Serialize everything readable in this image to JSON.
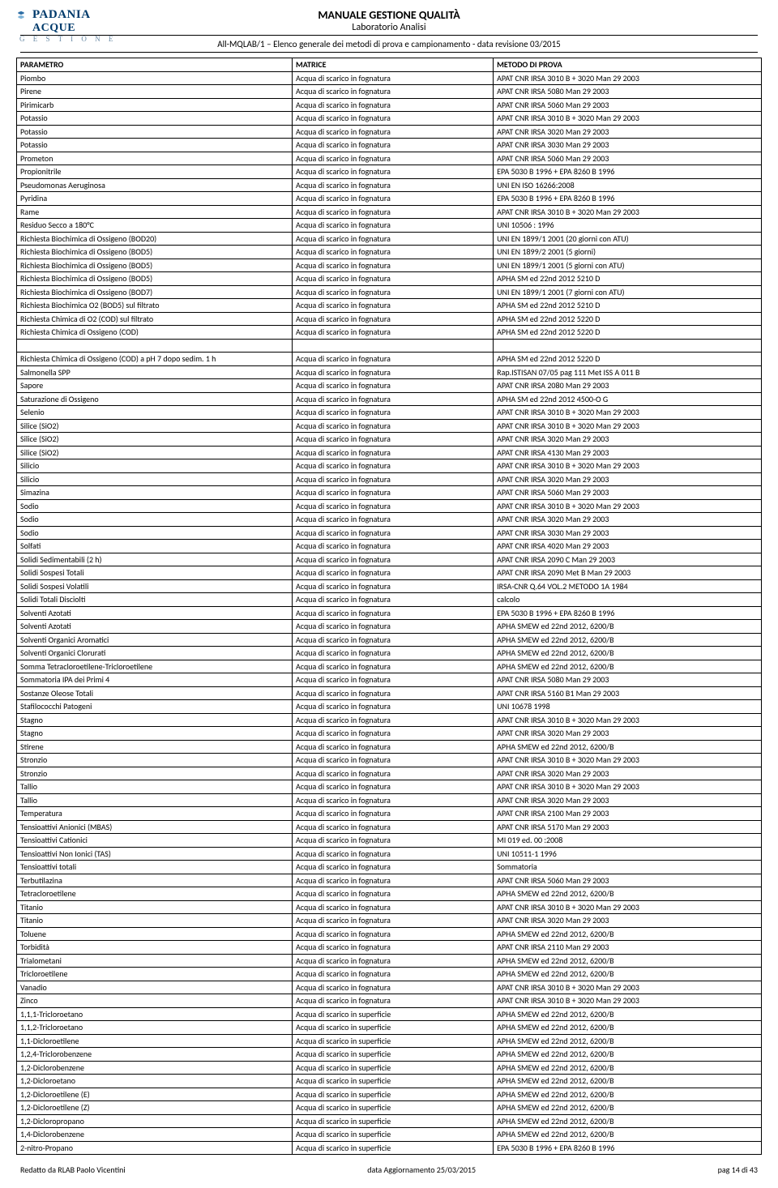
{
  "header": {
    "logo_top": "PADANIA",
    "logo_mid": "ACQUE",
    "logo_sub": "G E S T I O N E",
    "title1": "MANUALE GESTIONE QUALITÀ",
    "title2": "Laboratorio Analisi",
    "subtitle": "All-MQLAB/1 – Elenco generale dei metodi di prova e campionamento  - data revisione 03/2015"
  },
  "columns": [
    "PARAMETRO",
    "MATRICE",
    "METODO DI PROVA"
  ],
  "col_widths": [
    "37%",
    "27%",
    "36%"
  ],
  "rows": [
    [
      "Piombo",
      "Acqua di scarico in fognatura",
      "APAT CNR IRSA 3010 B + 3020 Man 29 2003"
    ],
    [
      "Pirene",
      "Acqua di scarico in fognatura",
      "APAT CNR IRSA 5080 Man 29 2003"
    ],
    [
      "Pirimicarb",
      "Acqua di scarico in fognatura",
      "APAT CNR IRSA 5060 Man 29 2003"
    ],
    [
      "Potassio",
      "Acqua di scarico in fognatura",
      "APAT CNR IRSA 3010 B + 3020 Man 29 2003"
    ],
    [
      "Potassio",
      "Acqua di scarico in fognatura",
      "APAT CNR IRSA 3020 Man 29 2003"
    ],
    [
      "Potassio",
      "Acqua di scarico in fognatura",
      "APAT CNR IRSA 3030 Man 29 2003"
    ],
    [
      "Prometon",
      "Acqua di scarico in fognatura",
      "APAT CNR IRSA 5060 Man 29 2003"
    ],
    [
      "Propionitrile",
      "Acqua di scarico in fognatura",
      "EPA 5030 B 1996 + EPA 8260 B 1996"
    ],
    [
      "Pseudomonas Aeruginosa",
      "Acqua di scarico in fognatura",
      "UNI EN ISO 16266:2008"
    ],
    [
      "Pyridina",
      "Acqua di scarico in fognatura",
      "EPA 5030 B 1996 + EPA 8260 B 1996"
    ],
    [
      "Rame",
      "Acqua di scarico in fognatura",
      "APAT CNR IRSA 3010 B + 3020 Man 29 2003"
    ],
    [
      "Residuo Secco a 180°C",
      "Acqua di scarico in fognatura",
      "UNI 10506 : 1996"
    ],
    [
      "Richiesta Biochimica di Ossigeno (BOD20)",
      "Acqua di scarico in fognatura",
      "UNI EN 1899/1 2001 (20 giorni con ATU)"
    ],
    [
      "Richiesta Biochimica di Ossigeno (BOD5)",
      "Acqua di scarico in fognatura",
      "UNI EN 1899/2 2001 (5 giorni)"
    ],
    [
      "Richiesta Biochimica di Ossigeno (BOD5)",
      "Acqua di scarico in fognatura",
      "UNI EN 1899/1 2001 (5 giorni con ATU)"
    ],
    [
      "Richiesta Biochimica di Ossigeno (BOD5)",
      "Acqua di scarico in fognatura",
      "APHA SM ed 22nd 2012 5210 D"
    ],
    [
      "Richiesta Biochimica di Ossigeno (BOD7)",
      "Acqua di scarico in fognatura",
      "UNI EN 1899/1 2001 (7 giorni con ATU)"
    ],
    [
      "Richiesta Biochimica O2 (BOD5) sul filtrato",
      "Acqua di scarico in fognatura",
      "APHA SM ed 22nd 2012 5210 D"
    ],
    [
      "Richiesta Chimica di O2 (COD) sul filtrato",
      "Acqua di scarico in fognatura",
      "APHA SM ed 22nd 2012 5220 D"
    ],
    [
      "Richiesta Chimica di Ossigeno (COD)",
      "Acqua di scarico in fognatura",
      "APHA SM ed 22nd 2012 5220 D"
    ],
    [
      "__SPACER__",
      "",
      ""
    ],
    [
      "Richiesta Chimica di Ossigeno (COD) a pH 7 dopo sedim. 1 h",
      "Acqua di scarico in fognatura",
      "APHA SM ed 22nd 2012 5220 D"
    ],
    [
      "Salmonella SPP",
      "Acqua di scarico in fognatura",
      "Rap.ISTISAN 07/05 pag 111 Met ISS A 011 B"
    ],
    [
      "Sapore",
      "Acqua di scarico in fognatura",
      "APAT CNR IRSA 2080 Man 29 2003"
    ],
    [
      "Saturazione di Ossigeno",
      "Acqua di scarico in fognatura",
      "APHA SM ed 22nd 2012 4500-O G"
    ],
    [
      "Selenio",
      "Acqua di scarico in fognatura",
      "APAT CNR IRSA 3010 B + 3020 Man 29 2003"
    ],
    [
      "Silice (SiO2)",
      "Acqua di scarico in fognatura",
      "APAT CNR IRSA 3010 B + 3020 Man 29 2003"
    ],
    [
      "Silice (SiO2)",
      "Acqua di scarico in fognatura",
      "APAT CNR IRSA 3020 Man 29 2003"
    ],
    [
      "Silice (SiO2)",
      "Acqua di scarico in fognatura",
      "APAT CNR IRSA 4130 Man 29 2003"
    ],
    [
      "Silicio",
      "Acqua di scarico in fognatura",
      "APAT CNR IRSA 3010 B + 3020 Man 29 2003"
    ],
    [
      "Silicio",
      "Acqua di scarico in fognatura",
      "APAT CNR IRSA 3020 Man 29 2003"
    ],
    [
      "Simazina",
      "Acqua di scarico in fognatura",
      "APAT CNR IRSA 5060 Man 29 2003"
    ],
    [
      "Sodio",
      "Acqua di scarico in fognatura",
      "APAT CNR IRSA 3010 B + 3020 Man 29 2003"
    ],
    [
      "Sodio",
      "Acqua di scarico in fognatura",
      "APAT CNR IRSA 3020 Man 29 2003"
    ],
    [
      "Sodio",
      "Acqua di scarico in fognatura",
      "APAT CNR IRSA 3030 Man 29 2003"
    ],
    [
      "Solfati",
      "Acqua di scarico in fognatura",
      "APAT CNR IRSA 4020 Man 29 2003"
    ],
    [
      "Solidi Sedimentabili (2 h)",
      "Acqua di scarico in fognatura",
      "APAT CNR IRSA 2090 C Man 29 2003"
    ],
    [
      "Solidi Sospesi Totali",
      "Acqua di scarico in fognatura",
      "APAT CNR IRSA 2090 Met B Man 29 2003"
    ],
    [
      "Solidi Sospesi Volatili",
      "Acqua di scarico in fognatura",
      "IRSA-CNR Q.64 VOL.2 METODO 1A 1984"
    ],
    [
      "Solidi Totali Disciolti",
      "Acqua di scarico in fognatura",
      "calcolo"
    ],
    [
      "Solventi Azotati",
      "Acqua di scarico in fognatura",
      "EPA 5030 B 1996 + EPA 8260 B 1996"
    ],
    [
      "Solventi Azotati",
      "Acqua di scarico in fognatura",
      "APHA SMEW ed 22nd 2012, 6200/B"
    ],
    [
      "Solventi Organici Aromatici",
      "Acqua di scarico in fognatura",
      "APHA SMEW ed 22nd 2012, 6200/B"
    ],
    [
      "Solventi Organici Clorurati",
      "Acqua di scarico in fognatura",
      "APHA SMEW ed 22nd 2012, 6200/B"
    ],
    [
      "Somma Tetracloroetilene-Tricloroetilene",
      "Acqua di scarico in fognatura",
      "APHA SMEW ed 22nd 2012, 6200/B"
    ],
    [
      "Sommatoria IPA dei Primi 4",
      "Acqua di scarico in fognatura",
      "APAT CNR IRSA 5080 Man 29 2003"
    ],
    [
      "Sostanze Oleose Totali",
      "Acqua di scarico in fognatura",
      "APAT CNR IRSA 5160 B1 Man 29 2003"
    ],
    [
      "Stafilococchi Patogeni",
      "Acqua di scarico in fognatura",
      "UNI 10678 1998"
    ],
    [
      "Stagno",
      "Acqua di scarico in fognatura",
      "APAT CNR IRSA 3010 B + 3020 Man 29 2003"
    ],
    [
      "Stagno",
      "Acqua di scarico in fognatura",
      "APAT CNR IRSA 3020 Man 29 2003"
    ],
    [
      "Stirene",
      "Acqua di scarico in fognatura",
      "APHA SMEW ed 22nd 2012, 6200/B"
    ],
    [
      "Stronzio",
      "Acqua di scarico in fognatura",
      "APAT CNR IRSA 3010 B + 3020 Man 29 2003"
    ],
    [
      "Stronzio",
      "Acqua di scarico in fognatura",
      "APAT CNR IRSA 3020 Man 29 2003"
    ],
    [
      "Tallio",
      "Acqua di scarico in fognatura",
      "APAT CNR IRSA 3010 B + 3020 Man 29 2003"
    ],
    [
      "Tallio",
      "Acqua di scarico in fognatura",
      "APAT CNR IRSA 3020 Man 29 2003"
    ],
    [
      "Temperatura",
      "Acqua di scarico in fognatura",
      "APAT CNR IRSA 2100 Man 29 2003"
    ],
    [
      "Tensioattivi Anionici (MBAS)",
      "Acqua di scarico in fognatura",
      "APAT CNR IRSA 5170 Man 29 2003"
    ],
    [
      "Tensioattivi Cationici",
      "Acqua di scarico in fognatura",
      "MI 019 ed. 00 :2008"
    ],
    [
      "Tensioattivi Non Ionici (TAS)",
      "Acqua di scarico in fognatura",
      "UNI 10511-1 1996"
    ],
    [
      "Tensioattivi totali",
      "Acqua di scarico in fognatura",
      "Sommatoria"
    ],
    [
      "Terbutilazina",
      "Acqua di scarico in fognatura",
      "APAT CNR IRSA 5060 Man 29 2003"
    ],
    [
      "Tetracloroetilene",
      "Acqua di scarico in fognatura",
      "APHA SMEW ed 22nd 2012, 6200/B"
    ],
    [
      "Titanio",
      "Acqua di scarico in fognatura",
      "APAT CNR IRSA 3010 B + 3020 Man 29 2003"
    ],
    [
      "Titanio",
      "Acqua di scarico in fognatura",
      "APAT CNR IRSA 3020 Man 29 2003"
    ],
    [
      "Toluene",
      "Acqua di scarico in fognatura",
      "APHA SMEW ed 22nd 2012, 6200/B"
    ],
    [
      "Torbidità",
      "Acqua di scarico in fognatura",
      "APAT CNR IRSA 2110 Man 29 2003"
    ],
    [
      "Trialometani",
      "Acqua di scarico in fognatura",
      "APHA SMEW ed 22nd 2012, 6200/B"
    ],
    [
      "Tricloroetilene",
      "Acqua di scarico in fognatura",
      "APHA SMEW ed 22nd 2012, 6200/B"
    ],
    [
      "Vanadio",
      "Acqua di scarico in fognatura",
      "APAT CNR IRSA 3010 B + 3020 Man 29 2003"
    ],
    [
      "Zinco",
      "Acqua di scarico in fognatura",
      "APAT CNR IRSA 3010 B + 3020 Man 29 2003"
    ],
    [
      "1,1,1-Tricloroetano",
      "Acqua di scarico in superficie",
      "APHA SMEW ed 22nd 2012, 6200/B"
    ],
    [
      "1,1,2-Tricloroetano",
      "Acqua di scarico in superficie",
      "APHA SMEW ed 22nd 2012, 6200/B"
    ],
    [
      "1,1-Dicloroetilene",
      "Acqua di scarico in superficie",
      "APHA SMEW ed 22nd 2012, 6200/B"
    ],
    [
      "1,2,4-Triclorobenzene",
      "Acqua di scarico in superficie",
      "APHA SMEW ed 22nd 2012, 6200/B"
    ],
    [
      "1,2-Diclorobenzene",
      "Acqua di scarico in superficie",
      "APHA SMEW ed 22nd 2012, 6200/B"
    ],
    [
      "1,2-Dicloroetano",
      "Acqua di scarico in superficie",
      "APHA SMEW ed 22nd 2012, 6200/B"
    ],
    [
      "1,2-Dicloroetilene (E)",
      "Acqua di scarico in superficie",
      "APHA SMEW ed 22nd 2012, 6200/B"
    ],
    [
      "1,2-Dicloroetilene (Z)",
      "Acqua di scarico in superficie",
      "APHA SMEW ed 22nd 2012, 6200/B"
    ],
    [
      "1,2-Dicloropropano",
      "Acqua di scarico in superficie",
      "APHA SMEW ed 22nd 2012, 6200/B"
    ],
    [
      "1,4-Diclorobenzene",
      "Acqua di scarico in superficie",
      "APHA SMEW ed 22nd 2012, 6200/B"
    ],
    [
      "2-nitro-Propano",
      "Acqua di scarico in superficie",
      "EPA 5030 B 1996 + EPA 8260 B 1996"
    ]
  ],
  "footer": {
    "left": "Redatto da RLAB  Paolo Vicentini",
    "center": "data Aggiornamento 25/03/2015",
    "right": "pag 14 di 43"
  }
}
